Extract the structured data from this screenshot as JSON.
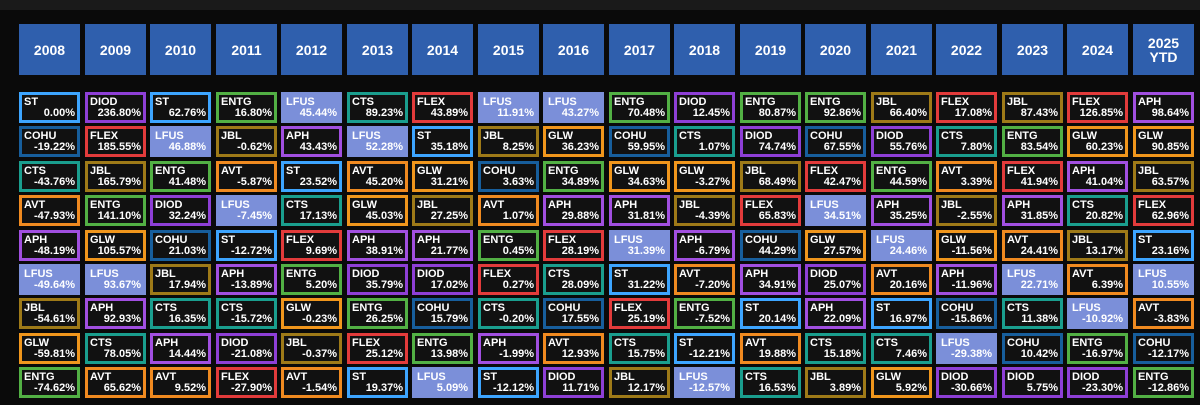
{
  "colors": {
    "background": "#0a0a0a",
    "header": "#2f5fad",
    "lfus_fill": "#7b8fd9",
    "ticker_border": {
      "ST": "#3da5ff",
      "DIOD": "#8e3fd6",
      "ENTG": "#52b044",
      "LFUS": "#8d9ee6",
      "CTS": "#1a9e8e",
      "FLEX": "#e23b3b",
      "JBL": "#9e7a18",
      "APH": "#a14fe0",
      "COHU": "#175e9c",
      "GLW": "#f0961c",
      "AVT": "#f08a20"
    }
  },
  "chart_data": {
    "type": "table",
    "title": "",
    "columns": [
      "2008",
      "2009",
      "2010",
      "2011",
      "2012",
      "2013",
      "2014",
      "2015",
      "2016",
      "2017",
      "2018",
      "2019",
      "2020",
      "2021",
      "2022",
      "2023",
      "2024",
      "2025 YTD"
    ],
    "rows": [
      [
        [
          "ST",
          "0.00%"
        ],
        [
          "DIOD",
          "236.80%"
        ],
        [
          "ST",
          "62.76%"
        ],
        [
          "ENTG",
          "16.80%"
        ],
        [
          "LFUS",
          "45.44%"
        ],
        [
          "CTS",
          "89.23%"
        ],
        [
          "FLEX",
          "43.89%"
        ],
        [
          "LFUS",
          "11.91%"
        ],
        [
          "LFUS",
          "43.27%"
        ],
        [
          "ENTG",
          "70.48%"
        ],
        [
          "DIOD",
          "12.45%"
        ],
        [
          "ENTG",
          "80.87%"
        ],
        [
          "ENTG",
          "92.86%"
        ],
        [
          "JBL",
          "66.40%"
        ],
        [
          "FLEX",
          "17.08%"
        ],
        [
          "JBL",
          "87.43%"
        ],
        [
          "FLEX",
          "126.85%"
        ],
        [
          "APH",
          "98.64%"
        ]
      ],
      [
        [
          "COHU",
          "-19.22%"
        ],
        [
          "FLEX",
          "185.55%"
        ],
        [
          "LFUS",
          "46.88%"
        ],
        [
          "JBL",
          "-0.62%"
        ],
        [
          "APH",
          "43.43%"
        ],
        [
          "LFUS",
          "52.28%"
        ],
        [
          "ST",
          "35.18%"
        ],
        [
          "JBL",
          "8.25%"
        ],
        [
          "GLW",
          "36.23%"
        ],
        [
          "COHU",
          "59.95%"
        ],
        [
          "CTS",
          "1.07%"
        ],
        [
          "DIOD",
          "74.74%"
        ],
        [
          "COHU",
          "67.55%"
        ],
        [
          "DIOD",
          "55.76%"
        ],
        [
          "CTS",
          "7.80%"
        ],
        [
          "ENTG",
          "83.54%"
        ],
        [
          "GLW",
          "60.23%"
        ],
        [
          "GLW",
          "90.85%"
        ]
      ],
      [
        [
          "CTS",
          "-43.76%"
        ],
        [
          "JBL",
          "165.79%"
        ],
        [
          "ENTG",
          "41.48%"
        ],
        [
          "AVT",
          "-5.87%"
        ],
        [
          "ST",
          "23.52%"
        ],
        [
          "AVT",
          "45.20%"
        ],
        [
          "GLW",
          "31.21%"
        ],
        [
          "COHU",
          "3.63%"
        ],
        [
          "ENTG",
          "34.89%"
        ],
        [
          "GLW",
          "34.63%"
        ],
        [
          "GLW",
          "-3.27%"
        ],
        [
          "JBL",
          "68.49%"
        ],
        [
          "FLEX",
          "42.47%"
        ],
        [
          "ENTG",
          "44.59%"
        ],
        [
          "AVT",
          "3.39%"
        ],
        [
          "FLEX",
          "41.94%"
        ],
        [
          "APH",
          "41.04%"
        ],
        [
          "JBL",
          "63.57%"
        ]
      ],
      [
        [
          "AVT",
          "-47.93%"
        ],
        [
          "ENTG",
          "141.10%"
        ],
        [
          "DIOD",
          "32.24%"
        ],
        [
          "LFUS",
          "-7.45%"
        ],
        [
          "CTS",
          "17.13%"
        ],
        [
          "GLW",
          "45.03%"
        ],
        [
          "JBL",
          "27.25%"
        ],
        [
          "AVT",
          "1.07%"
        ],
        [
          "APH",
          "29.88%"
        ],
        [
          "APH",
          "31.81%"
        ],
        [
          "JBL",
          "-4.39%"
        ],
        [
          "FLEX",
          "65.83%"
        ],
        [
          "LFUS",
          "34.51%"
        ],
        [
          "APH",
          "35.25%"
        ],
        [
          "JBL",
          "-2.55%"
        ],
        [
          "APH",
          "31.85%"
        ],
        [
          "CTS",
          "20.82%"
        ],
        [
          "FLEX",
          "62.96%"
        ]
      ],
      [
        [
          "APH",
          "-48.19%"
        ],
        [
          "GLW",
          "105.57%"
        ],
        [
          "COHU",
          "21.03%"
        ],
        [
          "ST",
          "-12.72%"
        ],
        [
          "FLEX",
          "9.69%"
        ],
        [
          "APH",
          "38.91%"
        ],
        [
          "APH",
          "21.77%"
        ],
        [
          "ENTG",
          "0.45%"
        ],
        [
          "FLEX",
          "28.19%"
        ],
        [
          "LFUS",
          "31.39%"
        ],
        [
          "APH",
          "-6.79%"
        ],
        [
          "COHU",
          "44.29%"
        ],
        [
          "GLW",
          "27.57%"
        ],
        [
          "LFUS",
          "24.46%"
        ],
        [
          "GLW",
          "-11.56%"
        ],
        [
          "AVT",
          "24.41%"
        ],
        [
          "JBL",
          "13.17%"
        ],
        [
          "ST",
          "23.16%"
        ]
      ],
      [
        [
          "LFUS",
          "-49.64%"
        ],
        [
          "LFUS",
          "93.67%"
        ],
        [
          "JBL",
          "17.94%"
        ],
        [
          "APH",
          "-13.89%"
        ],
        [
          "ENTG",
          "5.20%"
        ],
        [
          "DIOD",
          "35.79%"
        ],
        [
          "DIOD",
          "17.02%"
        ],
        [
          "FLEX",
          "0.27%"
        ],
        [
          "CTS",
          "28.09%"
        ],
        [
          "ST",
          "31.22%"
        ],
        [
          "AVT",
          "-7.20%"
        ],
        [
          "APH",
          "34.91%"
        ],
        [
          "DIOD",
          "25.07%"
        ],
        [
          "AVT",
          "20.16%"
        ],
        [
          "APH",
          "-11.96%"
        ],
        [
          "LFUS",
          "22.71%"
        ],
        [
          "AVT",
          "6.39%"
        ],
        [
          "LFUS",
          "10.55%"
        ]
      ],
      [
        [
          "JBL",
          "-54.61%"
        ],
        [
          "APH",
          "92.93%"
        ],
        [
          "CTS",
          "16.35%"
        ],
        [
          "CTS",
          "-15.72%"
        ],
        [
          "GLW",
          "-0.23%"
        ],
        [
          "ENTG",
          "26.25%"
        ],
        [
          "COHU",
          "15.79%"
        ],
        [
          "CTS",
          "-0.20%"
        ],
        [
          "COHU",
          "17.55%"
        ],
        [
          "FLEX",
          "25.19%"
        ],
        [
          "ENTG",
          "-7.52%"
        ],
        [
          "ST",
          "20.14%"
        ],
        [
          "APH",
          "22.09%"
        ],
        [
          "ST",
          "16.97%"
        ],
        [
          "COHU",
          "-15.86%"
        ],
        [
          "CTS",
          "11.38%"
        ],
        [
          "LFUS",
          "-10.92%"
        ],
        [
          "AVT",
          "-3.83%"
        ]
      ],
      [
        [
          "GLW",
          "-59.81%"
        ],
        [
          "CTS",
          "78.05%"
        ],
        [
          "APH",
          "14.44%"
        ],
        [
          "DIOD",
          "-21.08%"
        ],
        [
          "JBL",
          "-0.37%"
        ],
        [
          "FLEX",
          "25.12%"
        ],
        [
          "ENTG",
          "13.98%"
        ],
        [
          "APH",
          "-1.99%"
        ],
        [
          "AVT",
          "12.93%"
        ],
        [
          "CTS",
          "15.75%"
        ],
        [
          "ST",
          "-12.21%"
        ],
        [
          "AVT",
          "19.88%"
        ],
        [
          "CTS",
          "15.18%"
        ],
        [
          "CTS",
          "7.46%"
        ],
        [
          "LFUS",
          "-29.38%"
        ],
        [
          "COHU",
          "10.42%"
        ],
        [
          "ENTG",
          "-16.97%"
        ],
        [
          "COHU",
          "-12.17%"
        ]
      ],
      [
        [
          "ENTG",
          "-74.62%"
        ],
        [
          "AVT",
          "65.62%"
        ],
        [
          "AVT",
          "9.52%"
        ],
        [
          "FLEX",
          "-27.90%"
        ],
        [
          "AVT",
          "-1.54%"
        ],
        [
          "ST",
          "19.37%"
        ],
        [
          "LFUS",
          "5.09%"
        ],
        [
          "ST",
          "-12.12%"
        ],
        [
          "DIOD",
          "11.71%"
        ],
        [
          "JBL",
          "12.17%"
        ],
        [
          "LFUS",
          "-12.57%"
        ],
        [
          "CTS",
          "16.53%"
        ],
        [
          "JBL",
          "3.89%"
        ],
        [
          "GLW",
          "5.92%"
        ],
        [
          "DIOD",
          "-30.66%"
        ],
        [
          "DIOD",
          "5.75%"
        ],
        [
          "DIOD",
          "-23.30%"
        ],
        [
          "ENTG",
          "-12.86%"
        ]
      ]
    ]
  }
}
